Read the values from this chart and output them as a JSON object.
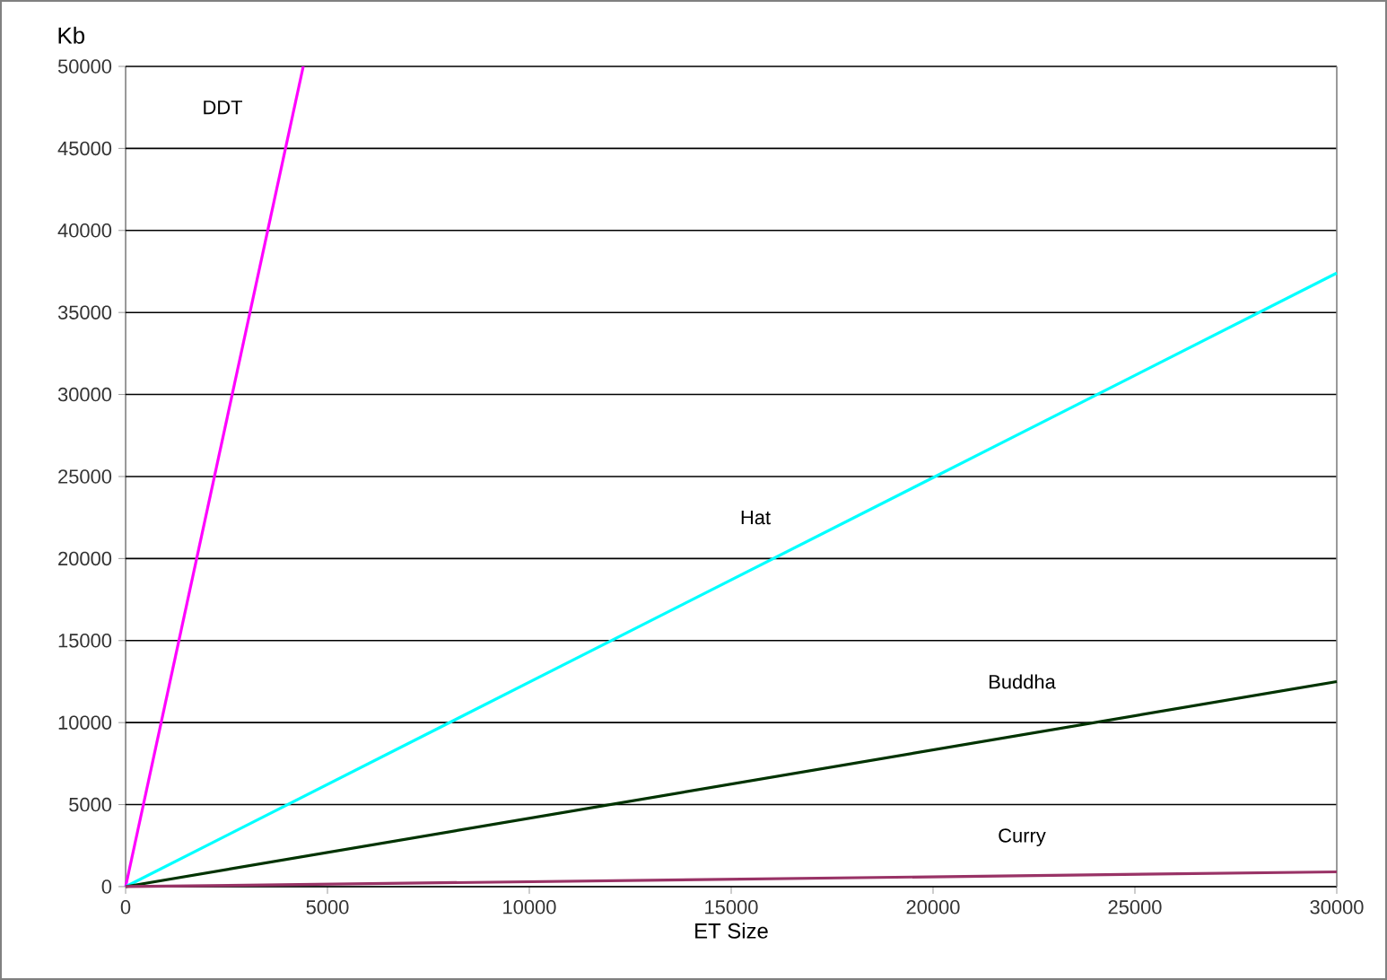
{
  "chart_data": {
    "type": "line",
    "xlabel": "ET Size",
    "ylabel": "Kb",
    "xlim": [
      0,
      30000
    ],
    "ylim": [
      0,
      50000
    ],
    "xticks": [
      0,
      5000,
      10000,
      15000,
      20000,
      25000,
      30000
    ],
    "yticks": [
      0,
      5000,
      10000,
      15000,
      20000,
      25000,
      30000,
      35000,
      40000,
      45000,
      50000
    ],
    "grid": "y",
    "legend": false,
    "marker": "none",
    "line_style": "solid",
    "series": [
      {
        "name": "DDT",
        "color": "#ff00ff",
        "x": [
          0,
          4400
        ],
        "values": [
          0,
          50000
        ]
      },
      {
        "name": "Hat",
        "color": "#00ffff",
        "x": [
          0,
          30000
        ],
        "values": [
          0,
          37400
        ]
      },
      {
        "name": "Buddha",
        "color": "#003300",
        "x": [
          0,
          30000
        ],
        "values": [
          0,
          12500
        ]
      },
      {
        "name": "Curry",
        "color": "#993366",
        "x": [
          0,
          30000
        ],
        "values": [
          0,
          900
        ]
      }
    ]
  }
}
